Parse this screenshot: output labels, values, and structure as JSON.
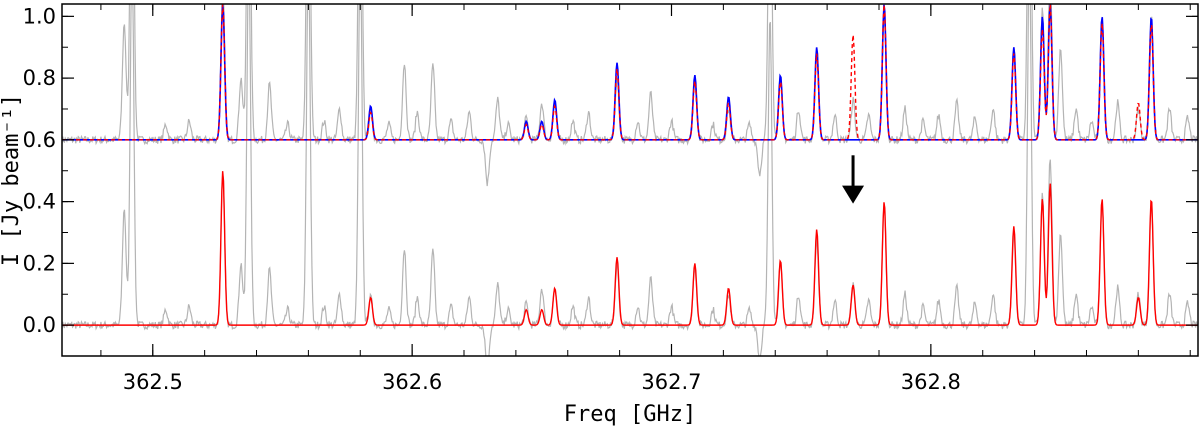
{
  "chart_data": {
    "type": "line",
    "title": "",
    "xlabel": "Freq [GHz]",
    "ylabel": "I [Jy beam⁻¹]",
    "xlim": [
      362.465,
      362.903
    ],
    "ylim": [
      -0.1,
      1.04
    ],
    "x_ticks": [
      362.5,
      362.6,
      362.7,
      362.8
    ],
    "x_tick_labels": [
      "362.5",
      "362.6",
      "362.7",
      "362.8"
    ],
    "y_ticks": [
      0.0,
      0.2,
      0.4,
      0.6,
      0.8,
      1.0
    ],
    "y_tick_labels": [
      "0.0",
      "0.2",
      "0.4",
      "0.6",
      "0.8",
      "1.0"
    ],
    "grid": false,
    "colors": {
      "observed": "#b4b4b4",
      "model_blue": "#0000ff",
      "model_red": "#ff0000",
      "arrow": "#000000"
    },
    "upper_panel_offset": 0.6,
    "line_width_ghz": 0.0007,
    "model_lines": [
      {
        "freq": 362.527,
        "upper_blue": 1.04,
        "upper_red": 1.04,
        "lower": 0.5
      },
      {
        "freq": 362.584,
        "upper_blue": 0.71,
        "upper_red": 0.69,
        "lower": 0.09
      },
      {
        "freq": 362.644,
        "upper_blue": 0.66,
        "upper_red": 0.65,
        "lower": 0.05
      },
      {
        "freq": 362.65,
        "upper_blue": 0.66,
        "upper_red": 0.65,
        "lower": 0.05
      },
      {
        "freq": 362.655,
        "upper_blue": 0.73,
        "upper_red": 0.71,
        "lower": 0.12
      },
      {
        "freq": 362.679,
        "upper_blue": 0.85,
        "upper_red": 0.83,
        "lower": 0.22
      },
      {
        "freq": 362.709,
        "upper_blue": 0.81,
        "upper_red": 0.79,
        "lower": 0.2
      },
      {
        "freq": 362.722,
        "upper_blue": 0.74,
        "upper_red": 0.72,
        "lower": 0.12
      },
      {
        "freq": 362.742,
        "upper_blue": 0.81,
        "upper_red": 0.79,
        "lower": 0.21
      },
      {
        "freq": 362.756,
        "upper_blue": 0.9,
        "upper_red": 0.88,
        "lower": 0.31
      },
      {
        "freq": 362.77,
        "upper_blue": 0.6,
        "upper_red": 0.94,
        "lower": 0.13
      },
      {
        "freq": 362.782,
        "upper_blue": 1.04,
        "upper_red": 1.04,
        "lower": 0.4
      },
      {
        "freq": 362.832,
        "upper_blue": 0.9,
        "upper_red": 0.88,
        "lower": 0.32
      },
      {
        "freq": 362.843,
        "upper_blue": 1.0,
        "upper_red": 0.96,
        "lower": 0.41
      },
      {
        "freq": 362.846,
        "upper_blue": 1.04,
        "upper_red": 1.04,
        "lower": 0.46
      },
      {
        "freq": 362.866,
        "upper_blue": 1.0,
        "upper_red": 0.98,
        "lower": 0.41
      },
      {
        "freq": 362.88,
        "upper_blue": 0.6,
        "upper_red": 0.72,
        "lower": 0.09
      },
      {
        "freq": 362.885,
        "upper_blue": 1.0,
        "upper_red": 0.98,
        "lower": 0.41
      }
    ],
    "observed_peaks": [
      {
        "freq": 362.489,
        "amp": 0.38
      },
      {
        "freq": 362.492,
        "amp": 1.2
      },
      {
        "freq": 362.505,
        "amp": 0.05
      },
      {
        "freq": 362.514,
        "amp": 0.06
      },
      {
        "freq": 362.527,
        "amp": 0.5
      },
      {
        "freq": 362.534,
        "amp": 0.2
      },
      {
        "freq": 362.537,
        "amp": 1.2
      },
      {
        "freq": 362.545,
        "amp": 0.18
      },
      {
        "freq": 362.552,
        "amp": 0.05
      },
      {
        "freq": 362.56,
        "amp": 1.2
      },
      {
        "freq": 362.566,
        "amp": 0.06
      },
      {
        "freq": 362.572,
        "amp": 0.1
      },
      {
        "freq": 362.58,
        "amp": 1.2
      },
      {
        "freq": 362.584,
        "amp": 0.09
      },
      {
        "freq": 362.591,
        "amp": 0.05
      },
      {
        "freq": 362.597,
        "amp": 0.25
      },
      {
        "freq": 362.602,
        "amp": 0.09
      },
      {
        "freq": 362.608,
        "amp": 0.24
      },
      {
        "freq": 362.615,
        "amp": 0.06
      },
      {
        "freq": 362.622,
        "amp": 0.09
      },
      {
        "freq": 362.629,
        "amp": -0.14
      },
      {
        "freq": 362.633,
        "amp": 0.13
      },
      {
        "freq": 362.637,
        "amp": 0.05
      },
      {
        "freq": 362.644,
        "amp": 0.07
      },
      {
        "freq": 362.65,
        "amp": 0.12
      },
      {
        "freq": 362.655,
        "amp": 0.12
      },
      {
        "freq": 362.662,
        "amp": 0.06
      },
      {
        "freq": 362.668,
        "amp": 0.09
      },
      {
        "freq": 362.679,
        "amp": 0.2
      },
      {
        "freq": 362.687,
        "amp": 0.06
      },
      {
        "freq": 362.692,
        "amp": 0.15
      },
      {
        "freq": 362.7,
        "amp": 0.06
      },
      {
        "freq": 362.709,
        "amp": 0.19
      },
      {
        "freq": 362.716,
        "amp": 0.05
      },
      {
        "freq": 362.722,
        "amp": 0.1
      },
      {
        "freq": 362.73,
        "amp": 0.05
      },
      {
        "freq": 362.734,
        "amp": -0.11
      },
      {
        "freq": 362.738,
        "amp": 1.0
      },
      {
        "freq": 362.742,
        "amp": 0.2
      },
      {
        "freq": 362.749,
        "amp": 0.1
      },
      {
        "freq": 362.756,
        "amp": 0.28
      },
      {
        "freq": 362.763,
        "amp": 0.08
      },
      {
        "freq": 362.77,
        "amp": 0.13
      },
      {
        "freq": 362.776,
        "amp": 0.08
      },
      {
        "freq": 362.782,
        "amp": 0.4
      },
      {
        "freq": 362.79,
        "amp": 0.1
      },
      {
        "freq": 362.797,
        "amp": 0.06
      },
      {
        "freq": 362.803,
        "amp": 0.08
      },
      {
        "freq": 362.81,
        "amp": 0.12
      },
      {
        "freq": 362.817,
        "amp": 0.07
      },
      {
        "freq": 362.824,
        "amp": 0.1
      },
      {
        "freq": 362.832,
        "amp": 0.3
      },
      {
        "freq": 362.838,
        "amp": 1.2
      },
      {
        "freq": 362.843,
        "amp": 0.42
      },
      {
        "freq": 362.846,
        "amp": 0.55
      },
      {
        "freq": 362.85,
        "amp": 0.3
      },
      {
        "freq": 362.856,
        "amp": 0.1
      },
      {
        "freq": 362.862,
        "amp": 0.06
      },
      {
        "freq": 362.866,
        "amp": 0.41
      },
      {
        "freq": 362.872,
        "amp": 0.12
      },
      {
        "freq": 362.88,
        "amp": 0.1
      },
      {
        "freq": 362.885,
        "amp": 0.4
      },
      {
        "freq": 362.892,
        "amp": 0.1
      },
      {
        "freq": 362.899,
        "amp": 0.07
      }
    ],
    "arrow": {
      "freq": 362.77,
      "y_from": 0.55,
      "y_to": 0.4
    }
  }
}
